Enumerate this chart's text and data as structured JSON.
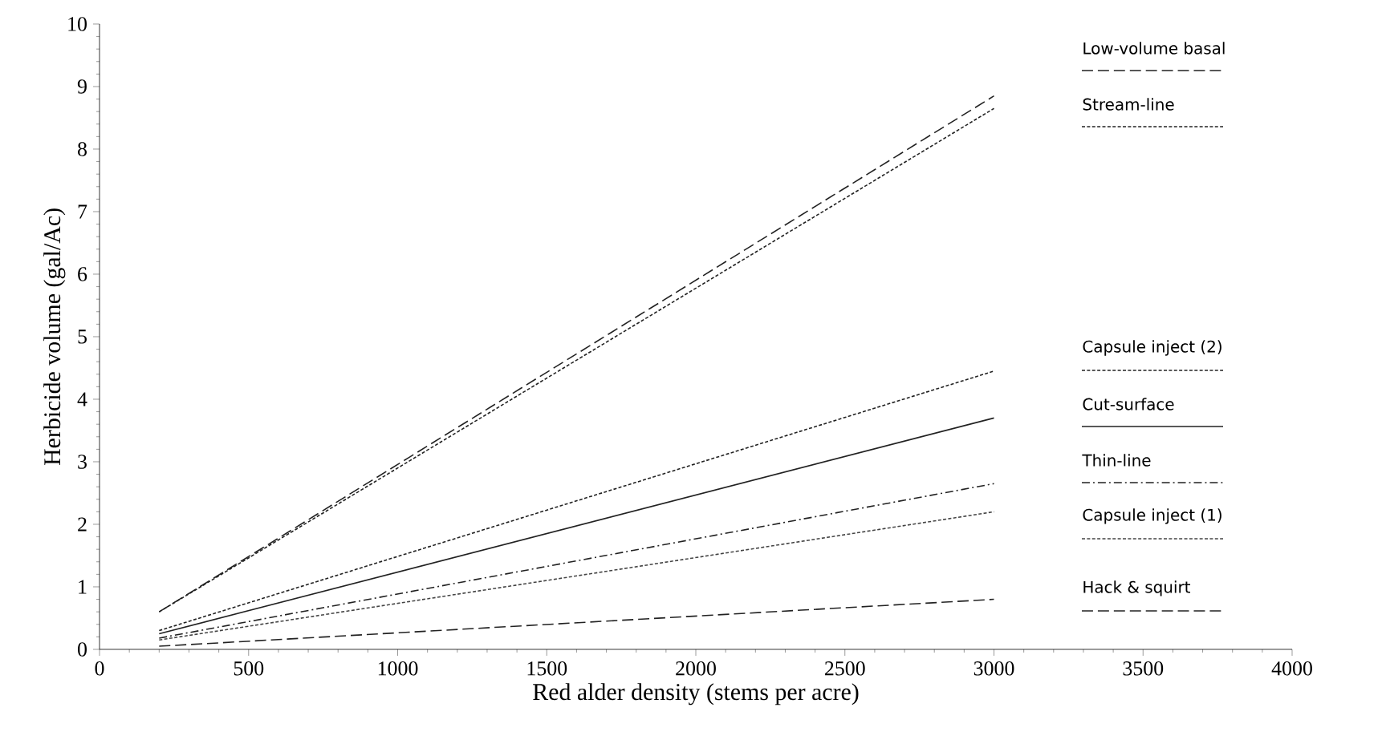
{
  "chart_data": {
    "type": "line",
    "xlabel": "Red alder density   (stems per acre)",
    "ylabel": "Herbicide volume   (gal/Ac)",
    "xlim": [
      0,
      4000
    ],
    "xticks": [
      0,
      500,
      1000,
      1500,
      2000,
      2500,
      3000,
      3500,
      4000
    ],
    "ylim": [
      0,
      10
    ],
    "yticks": [
      0,
      1,
      2,
      3,
      4,
      5,
      6,
      7,
      8,
      9,
      10
    ],
    "x": [
      200,
      3000
    ],
    "legend": "right",
    "grid": false,
    "marker": "none",
    "series": [
      {
        "name": "Low-volume basal",
        "color": "#222222",
        "values": [
          0.6,
          8.85
        ],
        "line_style": "dashed"
      },
      {
        "name": "Stream-line",
        "color": "#222222",
        "values": [
          0.6,
          8.65
        ],
        "line_style": "dotted"
      },
      {
        "name": "Capsule inject (2)",
        "color": "#222222",
        "values": [
          0.3,
          4.45
        ],
        "line_style": "dotted"
      },
      {
        "name": "Cut-surface",
        "color": "#222222",
        "values": [
          0.25,
          3.7
        ],
        "line_style": "solid"
      },
      {
        "name": "Thin-line",
        "color": "#222222",
        "values": [
          0.18,
          2.65
        ],
        "line_style": "dashdot"
      },
      {
        "name": "Capsule inject (1)",
        "color": "#444444",
        "values": [
          0.15,
          2.2
        ],
        "line_style": "dotted"
      },
      {
        "name": "Hack & squirt",
        "color": "#222222",
        "values": [
          0.05,
          0.8
        ],
        "line_style": "dashed"
      }
    ]
  }
}
